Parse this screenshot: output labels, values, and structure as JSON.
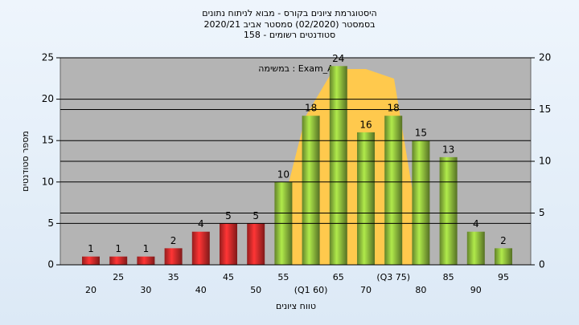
{
  "chart_data": {
    "type": "bar",
    "title": "היסטוגרמת ציונים בקורס - מבוא לניתוח נתונים",
    "subtitle": "בסמסטר  (02/2020)  סמסטר אביב 2020/21",
    "subtitle2": "סטודנטים רשומים - 158",
    "annotation": "במשימה : Exam_A",
    "ylabel": "מספר סטודנטים",
    "xlabel": "טווח ציונים",
    "categories": [
      "20",
      "25",
      "30",
      "35",
      "40",
      "45",
      "50",
      "55",
      "(Q1 60)",
      "65",
      "70",
      "(Q3 75)",
      "80",
      "85",
      "90",
      "95"
    ],
    "values": [
      1,
      1,
      1,
      2,
      4,
      5,
      5,
      10,
      18,
      24,
      16,
      18,
      15,
      13,
      4,
      2
    ],
    "colors": [
      "#d42a2a",
      "#d42a2a",
      "#d42a2a",
      "#d42a2a",
      "#d42a2a",
      "#d42a2a",
      "#d42a2a",
      "#8dbb3c",
      "#8dbb3c",
      "#8dbb3c",
      "#8dbb3c",
      "#8dbb3c",
      "#8dbb3c",
      "#8dbb3c",
      "#8dbb3c",
      "#8dbb3c"
    ],
    "ylim": [
      0,
      25
    ],
    "yticks": [
      0,
      5,
      10,
      15,
      20,
      25
    ],
    "y2lim": [
      0,
      20
    ],
    "y2ticks": [
      0,
      5,
      10,
      15,
      20
    ],
    "grid": true
  }
}
